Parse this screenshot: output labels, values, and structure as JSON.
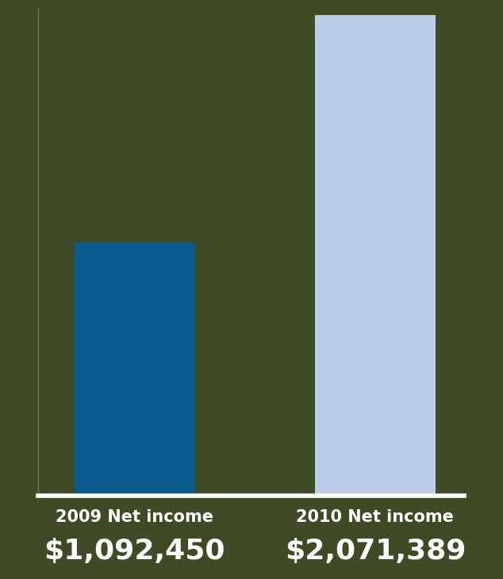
{
  "chart_data": {
    "type": "bar",
    "categories": [
      "2009 Net income",
      "2010 Net income"
    ],
    "values": [
      1092450,
      2071389
    ],
    "value_labels": [
      "$1,092,450",
      "$2,071,389"
    ],
    "data_labels": true,
    "colors": [
      "#0b5c8e",
      "#b9cde8"
    ],
    "ylim": [
      0,
      2100000
    ],
    "yticks": [],
    "tick_labels": "x",
    "grid": false
  }
}
